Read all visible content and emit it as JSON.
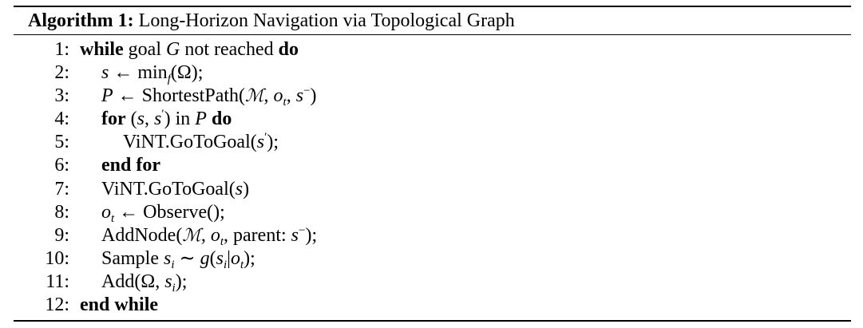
{
  "algorithm": {
    "label": "Algorithm 1:",
    "title": "Long-Horizon Navigation via Topological Graph"
  },
  "lines": [
    {
      "num": "1:",
      "indent": 0
    },
    {
      "num": "2:",
      "indent": 1
    },
    {
      "num": "3:",
      "indent": 1
    },
    {
      "num": "4:",
      "indent": 1
    },
    {
      "num": "5:",
      "indent": 2
    },
    {
      "num": "6:",
      "indent": 1
    },
    {
      "num": "7:",
      "indent": 1
    },
    {
      "num": "8:",
      "indent": 1
    },
    {
      "num": "9:",
      "indent": 1
    },
    {
      "num": "10:",
      "indent": 1
    },
    {
      "num": "11:",
      "indent": 1
    },
    {
      "num": "12:",
      "indent": 0
    }
  ],
  "tokens": {
    "while": "while",
    "goal": "goal",
    "G": "G",
    "not_reached": "not reached",
    "do": "do",
    "s": "s",
    "arrow": "←",
    "min": "min",
    "f": "f",
    "Omega": "Ω",
    "P": "P",
    "shortest_path": "ShortestPath",
    "M": "ℳ",
    "o": "o",
    "t": "t",
    "minus": "−",
    "for": "for",
    "prime": "′",
    "in": "in",
    "vint_gotogoal": "ViNT.GoToGoal",
    "end_for": "end for",
    "observe": "Observe();",
    "add_node": "AddNode",
    "parent": "parent:",
    "sample": "Sample",
    "i": "i",
    "tilde": "∼",
    "g": "g",
    "add": "Add",
    "end_while": "end while"
  }
}
